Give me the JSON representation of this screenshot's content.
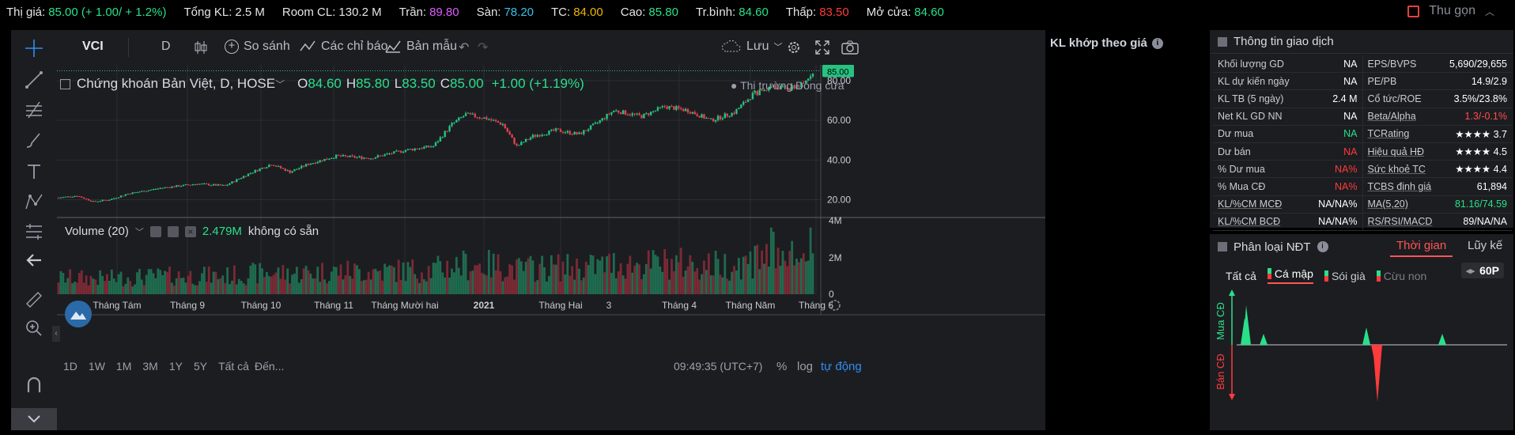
{
  "topbar": {
    "items": [
      {
        "label": "Thị giá:",
        "value": "85.00 (+ 1.00/ + 1.2%)",
        "cls": "up"
      },
      {
        "label": "Tổng KL:",
        "value": "2.5 M",
        "cls": "lbl"
      },
      {
        "label": "Room CL:",
        "value": "130.2 M",
        "cls": "lbl"
      },
      {
        "label": "Trần:",
        "value": "89.80",
        "cls": "ceil"
      },
      {
        "label": "Sàn:",
        "value": "78.20",
        "cls": "floor"
      },
      {
        "label": "TC:",
        "value": "84.00",
        "cls": "ref"
      },
      {
        "label": "Cao:",
        "value": "85.80",
        "cls": "up"
      },
      {
        "label": "Tr.bình:",
        "value": "84.60",
        "cls": "up"
      },
      {
        "label": "Thấp:",
        "value": "83.50",
        "cls": "dn"
      },
      {
        "label": "Mở cửa:",
        "value": "84.60",
        "cls": "up"
      }
    ],
    "collapse_label": "Thu gọn"
  },
  "toolbar": {
    "symbol": "VCI",
    "interval": "D",
    "compare": "So sánh",
    "indicators": "Các chỉ báo",
    "templates": "Bản mẫu",
    "save": "Lưu"
  },
  "legend": {
    "title": "Chứng khoán Bản Việt, D, HOSE",
    "o_label": "O",
    "o": "84.60",
    "h_label": "H",
    "h": "85.80",
    "l_label": "L",
    "l": "83.50",
    "c_label": "C",
    "c": "85.00",
    "chg": "+1.00 (+1.19%)",
    "market_status": "Thị trường Đóng cửa",
    "last_price": "85.00"
  },
  "volume": {
    "label": "Volume (20)",
    "value": "2.479M",
    "na": "không có sẵn"
  },
  "chart_data": {
    "type": "candlestick",
    "title": "Chứng khoán Bản Việt, D, HOSE",
    "x_ticks": [
      "Tháng Tám",
      "Tháng 9",
      "Tháng 10",
      "Tháng 11",
      "Tháng Mười hai",
      "2021",
      "Tháng Hai",
      "3",
      "Tháng 4",
      "Tháng Năm",
      "Tháng 6"
    ],
    "y_ticks": [
      "80.00",
      "60.00",
      "40.00",
      "20.00"
    ],
    "volume_ticks": [
      "4M",
      "2M",
      "0"
    ],
    "ylim": [
      13,
      88
    ],
    "close_trend": [
      [
        0,
        21
      ],
      [
        8,
        22
      ],
      [
        15,
        19
      ],
      [
        22,
        20
      ],
      [
        30,
        23
      ],
      [
        45,
        26
      ],
      [
        60,
        28
      ],
      [
        72,
        27
      ],
      [
        82,
        33
      ],
      [
        92,
        38
      ],
      [
        100,
        34
      ],
      [
        108,
        38
      ],
      [
        120,
        42
      ],
      [
        135,
        41
      ],
      [
        150,
        45
      ],
      [
        162,
        47
      ],
      [
        170,
        58
      ],
      [
        176,
        63
      ],
      [
        185,
        61
      ],
      [
        192,
        58
      ],
      [
        198,
        47
      ],
      [
        205,
        52
      ],
      [
        215,
        55
      ],
      [
        225,
        53
      ],
      [
        232,
        58
      ],
      [
        240,
        65
      ],
      [
        252,
        62
      ],
      [
        262,
        67
      ],
      [
        272,
        65
      ],
      [
        282,
        60
      ],
      [
        292,
        64
      ],
      [
        300,
        73
      ],
      [
        308,
        77
      ],
      [
        316,
        76
      ],
      [
        322,
        78
      ],
      [
        326,
        85
      ]
    ],
    "last": "85.00"
  },
  "bottombar": {
    "ranges": [
      "1D",
      "1W",
      "1M",
      "3M",
      "1Y",
      "5Y",
      "Tất cả"
    ],
    "goto": "Đến...",
    "time": "09:49:35 (UTC+7)",
    "pct": "%",
    "log": "log",
    "auto": "tự động"
  },
  "right_col": {
    "title": "KL khớp theo giá"
  },
  "info": {
    "title": "Thông tin giao dịch",
    "rows": [
      [
        {
          "k": "Khối lượng GD",
          "v": "NA",
          "c": "#fff"
        },
        {
          "k": "EPS/BVPS",
          "v": "5,690/29,655",
          "c": "#fff"
        }
      ],
      [
        {
          "k": "KL dự kiến ngày",
          "v": "NA",
          "c": "#fff"
        },
        {
          "k": "PE/PB",
          "v": "14.9/2.9",
          "c": "#fff"
        }
      ],
      [
        {
          "k": "KL TB (5 ngày)",
          "v": "2.4 M",
          "c": "#fff"
        },
        {
          "k": "Cổ tức/ROE",
          "v": "3.5%/23.8%",
          "c": "#fff"
        }
      ],
      [
        {
          "k": "Net KL GD NN",
          "v": "NA",
          "c": "#fff"
        },
        {
          "k": "Beta/Alpha",
          "v": "1.3/-0.1%",
          "c": "#ff4d4d"
        }
      ],
      [
        {
          "k": "Dư mua",
          "v": "NA",
          "c": "#29e08a"
        },
        {
          "k": "TCRating",
          "v": "★★★★ 3.7",
          "c": "#fff"
        }
      ],
      [
        {
          "k": "Dư bán",
          "v": "NA",
          "c": "#ff3b3b"
        },
        {
          "k": "Hiệu quả HĐ",
          "v": "★★★★ 4.5",
          "c": "#fff"
        }
      ],
      [
        {
          "k": "% Dư mua",
          "v": "NA%",
          "c": "#ff3b3b"
        },
        {
          "k": "Sức khoẻ TC",
          "v": "★★★★ 4.4",
          "c": "#fff"
        }
      ],
      [
        {
          "k": "% Mua CĐ",
          "v": "NA%",
          "c": "#ff3b3b"
        },
        {
          "k": "TCBS định giá",
          "v": "61,894",
          "c": "#fff"
        }
      ],
      [
        {
          "k": "KL/%CM MCĐ",
          "v": "NA/NA%",
          "c": "#fff"
        },
        {
          "k": "MA(5,20)",
          "v": "81.16/74.59",
          "c": "#29e08a"
        }
      ],
      [
        {
          "k": "KL/%CM BCĐ",
          "v": "NA/NA%",
          "c": "#fff"
        },
        {
          "k": "RS/RSI/MACD",
          "v": "89/NA/NA",
          "c": "#fff"
        }
      ]
    ]
  },
  "investor": {
    "title": "Phân loại NĐT",
    "tab_time": "Thời gian",
    "tab_cum": "Lũy kế",
    "filters": [
      "Tất cả",
      "Cá mập",
      "Sói già",
      "Cừu non"
    ],
    "period": "60P",
    "buy_label": "Mua CĐ",
    "sell_label": "Bán CĐ"
  }
}
